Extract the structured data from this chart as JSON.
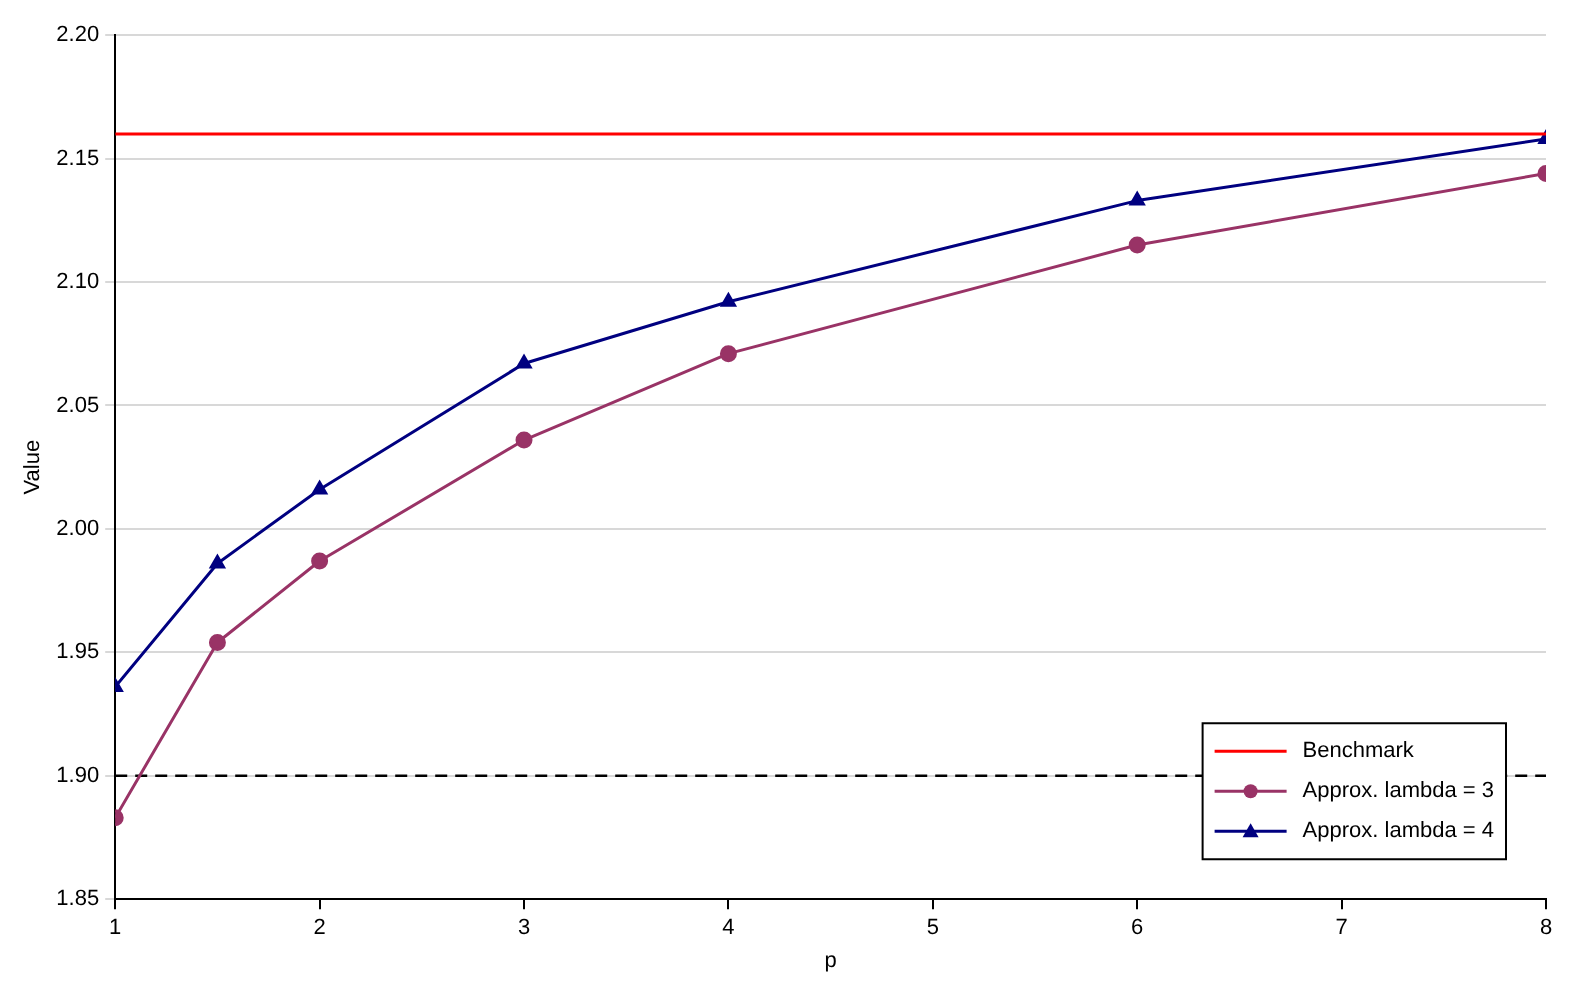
{
  "chart_data": {
    "type": "line",
    "xlabel": "p",
    "ylabel": "Value",
    "x": [
      1,
      1.5,
      2,
      3,
      4,
      6,
      8
    ],
    "series": [
      {
        "name": "Benchmark",
        "color": "#ff0000",
        "marker": "none",
        "x": [
          1,
          8
        ],
        "values": [
          2.16,
          2.16
        ]
      },
      {
        "name": "Approx. lambda = 3",
        "color": "#993366",
        "marker": "circle",
        "values": [
          1.883,
          1.954,
          1.987,
          2.036,
          2.071,
          2.115,
          2.144
        ]
      },
      {
        "name": "Approx. lambda = 4",
        "color": "#000080",
        "marker": "triangle",
        "values": [
          1.936,
          1.986,
          2.016,
          2.067,
          2.092,
          2.133,
          2.158
        ]
      }
    ],
    "xlim": [
      1,
      8
    ],
    "xticks": [
      1,
      2,
      3,
      4,
      5,
      6,
      7,
      8
    ],
    "ylim": [
      1.85,
      2.2
    ],
    "yticks": [
      1.85,
      {
        "value": 1.9,
        "label": "1.90"
      },
      1.95,
      {
        "value": 2.0,
        "label": "2.00"
      },
      2.05,
      {
        "value": 2.1,
        "label": "2.10"
      },
      2.15,
      {
        "value": 2.2,
        "label": "2.20"
      }
    ],
    "ref_lines": [
      {
        "axis": "y",
        "value": 1.9,
        "label": null,
        "color": "#000000",
        "line_style": "dashed"
      }
    ],
    "grid": "y",
    "legend": "bottom right",
    "line_style": "solid"
  }
}
